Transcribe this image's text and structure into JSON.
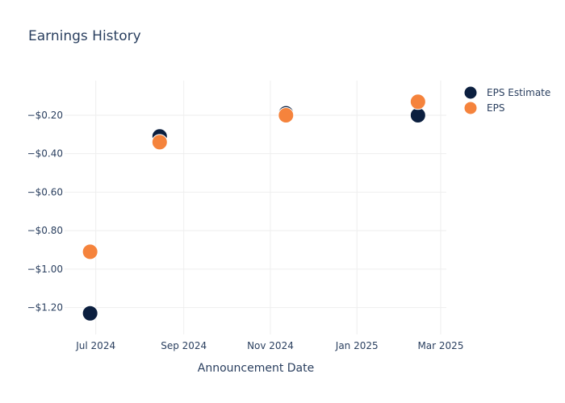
{
  "chart_data": {
    "type": "scatter",
    "title": "Earnings History",
    "xlabel": "Announcement Date",
    "ylabel": "",
    "x_ticks": [
      {
        "date": "2024-07-01",
        "label": "Jul 2024"
      },
      {
        "date": "2024-09-01",
        "label": "Sep 2024"
      },
      {
        "date": "2024-11-01",
        "label": "Nov 2024"
      },
      {
        "date": "2025-01-01",
        "label": "Jan 2025"
      },
      {
        "date": "2025-03-01",
        "label": "Mar 2025"
      }
    ],
    "y_ticks": [
      {
        "value": -0.2,
        "label": "−$0.20"
      },
      {
        "value": -0.4,
        "label": "−$0.40"
      },
      {
        "value": -0.6,
        "label": "−$0.60"
      },
      {
        "value": -0.8,
        "label": "−$0.80"
      },
      {
        "value": -1.0,
        "label": "−$1.00"
      },
      {
        "value": -1.2,
        "label": "−$1.20"
      }
    ],
    "xlim": [
      "2024-06-09",
      "2025-03-05"
    ],
    "ylim": [
      -1.34,
      -0.02
    ],
    "grid": true,
    "legend_position": "top-right",
    "series": [
      {
        "name": "EPS Estimate",
        "color": "#0b1f3f",
        "points": [
          {
            "x": "2024-06-27",
            "y": -1.23
          },
          {
            "x": "2024-08-15",
            "y": -0.31
          },
          {
            "x": "2024-11-12",
            "y": -0.19
          },
          {
            "x": "2025-02-13",
            "y": -0.2
          }
        ]
      },
      {
        "name": "EPS",
        "color": "#f5833c",
        "points": [
          {
            "x": "2024-06-27",
            "y": -0.91
          },
          {
            "x": "2024-08-15",
            "y": -0.34
          },
          {
            "x": "2024-11-12",
            "y": -0.2
          },
          {
            "x": "2025-02-13",
            "y": -0.13
          }
        ]
      }
    ]
  }
}
